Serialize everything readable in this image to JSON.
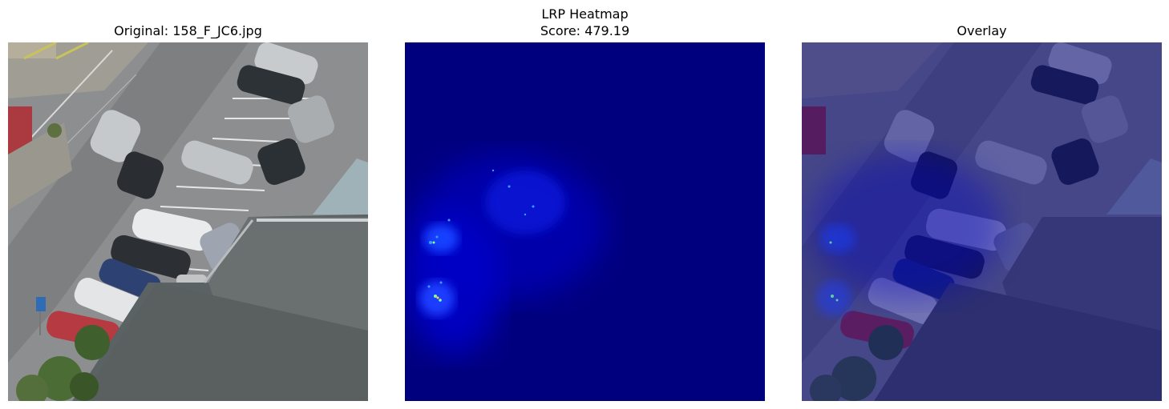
{
  "panels": [
    {
      "id": "original",
      "title": "Original: 158_F_JC6.jpg"
    },
    {
      "id": "heatmap",
      "title_line1": "LRP Heatmap",
      "title_line2": "Score: 479.19"
    },
    {
      "id": "overlay",
      "title": "Overlay"
    }
  ],
  "colors": {
    "background": "#ffffff",
    "heatmap_base": "#00007f",
    "asphalt": "#8a8c8e",
    "roof": "#5f6667",
    "vegetation": "#4e6b35"
  }
}
